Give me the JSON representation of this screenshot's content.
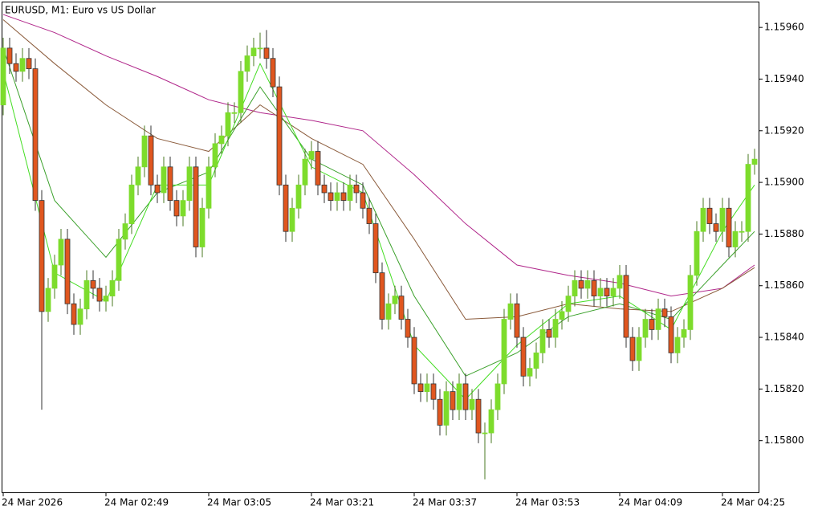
{
  "chart_data": {
    "type": "candlestick",
    "title": "EURUSD, M1:  Euro vs US Dollar",
    "up_color": "#7ddc2c",
    "down_color": "#e0561f",
    "ylim": [
      1.1578,
      1.1597
    ],
    "yticks": [
      {
        "value": 1.158,
        "label": "1.15800"
      },
      {
        "value": 1.1582,
        "label": "1.15820"
      },
      {
        "value": 1.1584,
        "label": "1.15840"
      },
      {
        "value": 1.1586,
        "label": "1.15860"
      },
      {
        "value": 1.1588,
        "label": "1.15880"
      },
      {
        "value": 1.159,
        "label": "1.15900"
      },
      {
        "value": 1.1592,
        "label": "1.15920"
      },
      {
        "value": 1.1594,
        "label": "1.15940"
      },
      {
        "value": 1.1596,
        "label": "1.15960"
      }
    ],
    "categories": [
      "24 Mar 2026",
      null,
      null,
      null,
      null,
      null,
      null,
      null,
      null,
      null,
      null,
      null,
      null,
      null,
      null,
      null,
      "24 Mar 02:49",
      null,
      null,
      null,
      null,
      null,
      null,
      null,
      null,
      null,
      null,
      null,
      null,
      null,
      null,
      null,
      "24 Mar 03:05",
      null,
      null,
      null,
      null,
      null,
      null,
      null,
      null,
      null,
      null,
      null,
      null,
      null,
      null,
      null,
      "24 Mar 03:21",
      null,
      null,
      null,
      null,
      null,
      null,
      null,
      null,
      null,
      null,
      null,
      null,
      null,
      null,
      null,
      "24 Mar 03:37",
      null,
      null,
      null,
      null,
      null,
      null,
      null,
      null,
      null,
      null,
      null,
      null,
      null,
      null,
      null,
      "24 Mar 03:53",
      null,
      null,
      null,
      null,
      null,
      null,
      null,
      null,
      null,
      null,
      null,
      null,
      null,
      null,
      null,
      "24 Mar 04:09",
      null,
      null,
      null,
      null,
      null,
      null,
      null,
      null,
      null,
      null,
      null,
      null,
      null,
      null,
      null,
      "24 Mar 04:25",
      null,
      null,
      null,
      null,
      null
    ],
    "open": [
      1.1593,
      1.15952,
      1.15946,
      1.15943,
      1.15948,
      1.15944,
      1.15893,
      1.1585,
      1.15859,
      1.15868,
      1.15878,
      1.15853,
      1.15845,
      1.15851,
      1.15862,
      1.15859,
      1.15854,
      1.15856,
      1.15862,
      1.15878,
      1.15884,
      1.15899,
      1.15906,
      1.15918,
      1.15899,
      1.15896,
      1.15906,
      1.15893,
      1.15887,
      1.15893,
      1.15906,
      1.15875,
      1.1589,
      1.15906,
      1.15915,
      1.15918,
      1.15927,
      1.15927,
      1.15943,
      1.15949,
      1.15952,
      1.15952,
      1.15948,
      1.15937,
      1.15899,
      1.15881,
      1.1589,
      1.15899,
      1.15909,
      1.15912,
      1.15899,
      1.15896,
      1.15893,
      1.15896,
      1.15893,
      1.15899,
      1.15896,
      1.1589,
      1.15884,
      1.15865,
      1.15847,
      1.15853,
      1.15856,
      1.15847,
      1.1584,
      1.15822,
      1.15819,
      1.15822,
      1.15816,
      1.15806,
      1.15819,
      1.15812,
      1.15822,
      1.15812,
      1.15816,
      1.15803,
      1.15803,
      1.15812,
      1.15822,
      1.15847,
      1.15853,
      1.1584,
      1.15825,
      1.15828,
      1.15834,
      1.15843,
      1.1584,
      1.15847,
      1.1585,
      1.15856,
      1.15862,
      1.15859,
      1.15862,
      1.15856,
      1.15859,
      1.15856,
      1.15859,
      1.15864,
      1.1584,
      1.15831,
      1.1584,
      1.15847,
      1.15843,
      1.15851,
      1.15848,
      1.15834,
      1.1584,
      1.15843,
      1.15864,
      1.15881,
      1.1589,
      1.15884,
      1.15881,
      1.1589,
      1.15875,
      1.15881,
      1.15881,
      1.15907
    ],
    "high": [
      1.15956,
      1.15956,
      1.1595,
      1.15952,
      1.15952,
      1.15948,
      1.15897,
      1.15863,
      1.15872,
      1.15882,
      1.15882,
      1.15857,
      1.15855,
      1.15866,
      1.15866,
      1.15863,
      1.1586,
      1.15866,
      1.15882,
      1.15888,
      1.15903,
      1.1591,
      1.15922,
      1.15922,
      1.15903,
      1.1591,
      1.1591,
      1.15897,
      1.15897,
      1.1591,
      1.1591,
      1.15894,
      1.1591,
      1.15919,
      1.15922,
      1.15931,
      1.15931,
      1.15947,
      1.15953,
      1.15956,
      1.15958,
      1.15959,
      1.15952,
      1.15941,
      1.15903,
      1.15894,
      1.15903,
      1.15913,
      1.15916,
      1.15916,
      1.15903,
      1.159,
      1.159,
      1.159,
      1.15903,
      1.15903,
      1.159,
      1.15894,
      1.15888,
      1.15869,
      1.15857,
      1.1586,
      1.1586,
      1.15851,
      1.15844,
      1.15826,
      1.15826,
      1.15826,
      1.1582,
      1.15823,
      1.15823,
      1.15826,
      1.15826,
      1.1582,
      1.1582,
      1.15807,
      1.15816,
      1.15826,
      1.15851,
      1.15857,
      1.15857,
      1.15844,
      1.15832,
      1.15838,
      1.15847,
      1.15847,
      1.15851,
      1.15854,
      1.1586,
      1.15866,
      1.15866,
      1.15866,
      1.15866,
      1.15863,
      1.15863,
      1.15863,
      1.15868,
      1.15868,
      1.15844,
      1.15844,
      1.15851,
      1.15851,
      1.15855,
      1.15855,
      1.15852,
      1.15844,
      1.15847,
      1.15868,
      1.15885,
      1.15894,
      1.15894,
      1.15888,
      1.15894,
      1.15894,
      1.15885,
      1.15885,
      1.15911,
      1.15913
    ],
    "low": [
      1.15926,
      1.15942,
      1.15939,
      1.15939,
      1.1594,
      1.15889,
      1.15812,
      1.15846,
      1.15855,
      1.15864,
      1.15849,
      1.15841,
      1.15841,
      1.15847,
      1.15855,
      1.1585,
      1.1585,
      1.15852,
      1.15858,
      1.15874,
      1.1588,
      1.15895,
      1.15902,
      1.15895,
      1.15892,
      1.15892,
      1.15889,
      1.15883,
      1.15883,
      1.15889,
      1.15871,
      1.15871,
      1.15886,
      1.15902,
      1.15911,
      1.15914,
      1.15923,
      1.15923,
      1.15939,
      1.15945,
      1.15948,
      1.15944,
      1.15933,
      1.15895,
      1.15877,
      1.15877,
      1.15886,
      1.15895,
      1.15905,
      1.15895,
      1.15892,
      1.15889,
      1.15889,
      1.15889,
      1.15889,
      1.15892,
      1.15886,
      1.1588,
      1.15861,
      1.15843,
      1.15843,
      1.15849,
      1.15843,
      1.15836,
      1.15818,
      1.15815,
      1.15815,
      1.15812,
      1.15802,
      1.15802,
      1.15808,
      1.15808,
      1.15808,
      1.15808,
      1.15799,
      1.15785,
      1.15799,
      1.15808,
      1.15818,
      1.15843,
      1.15836,
      1.15821,
      1.15821,
      1.15824,
      1.1583,
      1.15836,
      1.15836,
      1.15843,
      1.15846,
      1.15852,
      1.15855,
      1.15855,
      1.15852,
      1.15852,
      1.15852,
      1.15852,
      1.15855,
      1.15836,
      1.15827,
      1.15827,
      1.15836,
      1.15839,
      1.15839,
      1.15844,
      1.1583,
      1.1583,
      1.15836,
      1.15839,
      1.1586,
      1.15877,
      1.1588,
      1.15877,
      1.15877,
      1.15871,
      1.15871,
      1.15877,
      1.15877,
      1.15903
    ],
    "close": [
      1.15952,
      1.15946,
      1.15943,
      1.15948,
      1.15944,
      1.15893,
      1.1585,
      1.15859,
      1.15868,
      1.15878,
      1.15853,
      1.15845,
      1.15851,
      1.15862,
      1.15859,
      1.15854,
      1.15856,
      1.15862,
      1.15878,
      1.15884,
      1.15899,
      1.15906,
      1.15918,
      1.15899,
      1.15896,
      1.15906,
      1.15893,
      1.15887,
      1.15893,
      1.15906,
      1.15875,
      1.1589,
      1.15906,
      1.15915,
      1.15918,
      1.15927,
      1.15927,
      1.15943,
      1.15949,
      1.15952,
      1.15952,
      1.15948,
      1.15937,
      1.15899,
      1.15881,
      1.1589,
      1.15899,
      1.15909,
      1.15912,
      1.15899,
      1.15896,
      1.15893,
      1.15896,
      1.15893,
      1.15899,
      1.15896,
      1.1589,
      1.15884,
      1.15865,
      1.15847,
      1.15853,
      1.15856,
      1.15847,
      1.1584,
      1.15822,
      1.15819,
      1.15822,
      1.15816,
      1.15806,
      1.15819,
      1.15812,
      1.15822,
      1.15812,
      1.15816,
      1.15803,
      1.15803,
      1.15812,
      1.15822,
      1.15847,
      1.15853,
      1.1584,
      1.15825,
      1.15828,
      1.15834,
      1.15843,
      1.1584,
      1.15847,
      1.1585,
      1.15856,
      1.15862,
      1.15859,
      1.15862,
      1.15856,
      1.15859,
      1.15856,
      1.15859,
      1.15864,
      1.1584,
      1.15831,
      1.1584,
      1.15847,
      1.15843,
      1.15851,
      1.15848,
      1.15834,
      1.1584,
      1.15843,
      1.15864,
      1.15881,
      1.1589,
      1.15884,
      1.15881,
      1.1589,
      1.15875,
      1.15881,
      1.15881,
      1.15907,
      1.15909
    ],
    "overlays": {
      "x": [
        0,
        8,
        16,
        24,
        32,
        40,
        48,
        56,
        64,
        72,
        80,
        88,
        96,
        104,
        112,
        117
      ],
      "series": [
        {
          "color": "#b0268a",
          "values": [
            1.15965,
            1.15958,
            1.15949,
            1.15941,
            1.15932,
            1.15927,
            1.15924,
            1.1592,
            1.15903,
            1.15884,
            1.15868,
            1.15864,
            1.15861,
            1.15856,
            1.15859,
            1.15868
          ]
        },
        {
          "color": "#8a5a3a",
          "values": [
            1.15963,
            1.15946,
            1.1593,
            1.15917,
            1.15912,
            1.1593,
            1.15917,
            1.15907,
            1.15878,
            1.15847,
            1.15848,
            1.15853,
            1.15851,
            1.1585,
            1.15859,
            1.15867
          ]
        },
        {
          "color": "#3aa02a",
          "values": [
            1.15952,
            1.15893,
            1.15871,
            1.15896,
            1.15904,
            1.15937,
            1.15909,
            1.15899,
            1.15856,
            1.15825,
            1.15834,
            1.15848,
            1.15853,
            1.15847,
            1.15868,
            1.15881
          ]
        },
        {
          "color": "#44dd22",
          "values": [
            1.15943,
            1.15865,
            1.15854,
            1.15899,
            1.15899,
            1.15946,
            1.15906,
            1.15896,
            1.15837,
            1.15816,
            1.15837,
            1.15853,
            1.15856,
            1.15843,
            1.15881,
            1.15899
          ]
        }
      ]
    }
  }
}
